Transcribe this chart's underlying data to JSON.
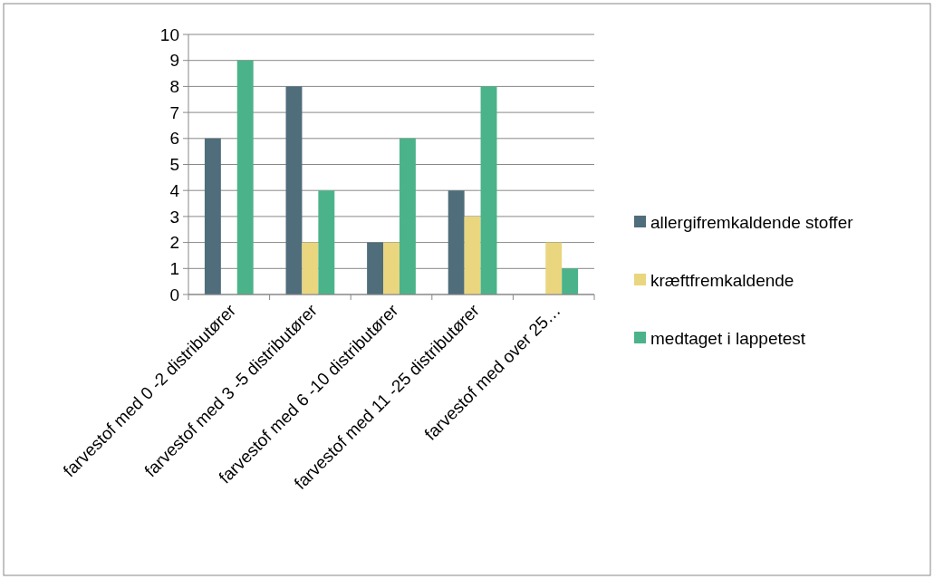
{
  "chart_data": {
    "type": "bar",
    "categories": [
      "farvestof med 0 -2 distributører",
      "farvestof med 3 -5 distributører",
      "farvestof med 6 -10 distributører",
      "farvestof med 11 -25 distributører",
      "farvestof med over 25…"
    ],
    "series": [
      {
        "name": "allergifremkaldende stoffer",
        "color": "#4f6d7a",
        "values": [
          6,
          8,
          2,
          4,
          0
        ]
      },
      {
        "name": "kræftfremkaldende",
        "color": "#e9d67e",
        "values": [
          0,
          2,
          2,
          3,
          2
        ]
      },
      {
        "name": "medtaget i lappetest",
        "color": "#4bb38a",
        "values": [
          9,
          4,
          6,
          8,
          1
        ]
      }
    ],
    "ylim": [
      0,
      10
    ],
    "yticks": [
      0,
      1,
      2,
      3,
      4,
      5,
      6,
      7,
      8,
      9,
      10
    ],
    "grid": "y",
    "legend": "right"
  }
}
